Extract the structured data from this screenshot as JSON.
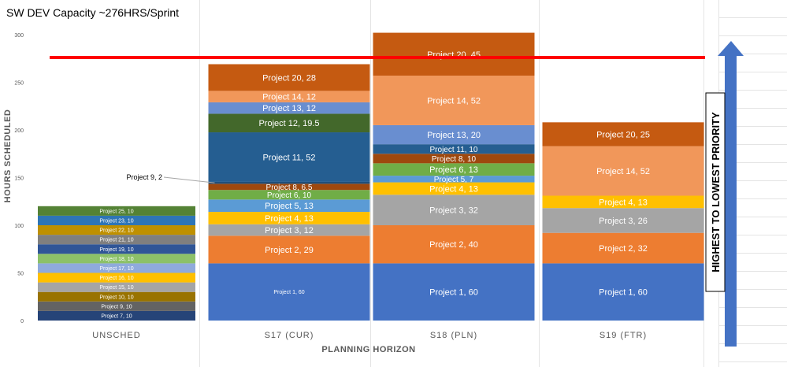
{
  "chart_data": {
    "type": "bar",
    "stacked": true,
    "title": "SW DEV Capacity ~276HRS/Sprint",
    "xlabel": "PLANNING HORIZON",
    "ylabel": "HOURS SCHEDULED",
    "ylim": [
      0,
      300
    ],
    "yticks": [
      "0",
      "50",
      "100",
      "150",
      "200",
      "250",
      "300"
    ],
    "categories": [
      "UNSCHED",
      "S17 (CUR)",
      "S18 (PLN)",
      "S19 (FTR)"
    ],
    "capacity_line": 276,
    "capacity_color": "#ff0000",
    "priority_arrow_label": "HIGHEST TO LOWEST PRIORITY",
    "arrow_color": "#4472c4",
    "external_label": {
      "text": "Project 9, 2",
      "category": "S17 (CUR)",
      "segment": 7
    },
    "stacks": [
      {
        "category": "UNSCHED",
        "segments": [
          {
            "label": "Project 7, 10",
            "value": 10,
            "color": "#264478"
          },
          {
            "label": "Project 9, 10",
            "value": 10,
            "color": "#636363"
          },
          {
            "label": "Project 10, 10",
            "value": 10,
            "color": "#997300"
          },
          {
            "label": "Project 15, 10",
            "value": 10,
            "color": "#a5a5a5"
          },
          {
            "label": "Project 16, 10",
            "value": 10,
            "color": "#ffc000"
          },
          {
            "label": "Project 17, 10",
            "value": 10,
            "color": "#8faadc"
          },
          {
            "label": "Project 18, 10",
            "value": 10,
            "color": "#8cc168"
          },
          {
            "label": "Project 19, 10",
            "value": 10,
            "color": "#2f5597"
          },
          {
            "label": "Project 21, 10",
            "value": 10,
            "color": "#7f7f7f"
          },
          {
            "label": "Project 22, 10",
            "value": 10,
            "color": "#bf9000"
          },
          {
            "label": "Project 23, 10",
            "value": 10,
            "color": "#2e75b6"
          },
          {
            "label": "Project 25, 10",
            "value": 10,
            "color": "#548235"
          }
        ]
      },
      {
        "category": "S17 (CUR)",
        "segments": [
          {
            "label": "Project 1, 60",
            "value": 60,
            "color": "#4472c4"
          },
          {
            "label": "Project 2, 29",
            "value": 29,
            "color": "#ed7d31"
          },
          {
            "label": "Project 3, 12",
            "value": 12,
            "color": "#a5a5a5"
          },
          {
            "label": "Project 4, 13",
            "value": 13,
            "color": "#ffc000"
          },
          {
            "label": "Project 5, 13",
            "value": 13,
            "color": "#5b9bd5"
          },
          {
            "label": "Project 6, 10",
            "value": 10,
            "color": "#70ad47"
          },
          {
            "label": "Project 8, 6.5",
            "value": 6.5,
            "color": "#9e480e"
          },
          {
            "label": "",
            "value": 2,
            "color": "#1f4e79"
          },
          {
            "label": "Project 11, 52",
            "value": 52,
            "color": "#255e91"
          },
          {
            "label": "Project 12, 19.5",
            "value": 19.5,
            "color": "#43682b"
          },
          {
            "label": "Project 13, 12",
            "value": 12,
            "color": "#698ed0"
          },
          {
            "label": "Project 14, 12",
            "value": 12,
            "color": "#f1975a"
          },
          {
            "label": "Project 20, 28",
            "value": 28,
            "color": "#c55a11"
          }
        ]
      },
      {
        "category": "S18 (PLN)",
        "segments": [
          {
            "label": "Project 1, 60",
            "value": 60,
            "color": "#4472c4"
          },
          {
            "label": "Project 2, 40",
            "value": 40,
            "color": "#ed7d31"
          },
          {
            "label": "Project 3, 32",
            "value": 32,
            "color": "#a5a5a5"
          },
          {
            "label": "Project 4, 13",
            "value": 13,
            "color": "#ffc000"
          },
          {
            "label": "Project 5, 7",
            "value": 7,
            "color": "#5b9bd5"
          },
          {
            "label": "Project 6, 13",
            "value": 13,
            "color": "#70ad47"
          },
          {
            "label": "Project 8, 10",
            "value": 10,
            "color": "#9e480e"
          },
          {
            "label": "Project 11, 10",
            "value": 10,
            "color": "#255e91"
          },
          {
            "label": "Project 13, 20",
            "value": 20,
            "color": "#698ed0"
          },
          {
            "label": "Project 14, 52",
            "value": 52,
            "color": "#f1975a"
          },
          {
            "label": "Project 20, 45",
            "value": 45,
            "color": "#c55a11"
          }
        ]
      },
      {
        "category": "S19 (FTR)",
        "segments": [
          {
            "label": "Project 1, 60",
            "value": 60,
            "color": "#4472c4"
          },
          {
            "label": "Project 2, 32",
            "value": 32,
            "color": "#ed7d31"
          },
          {
            "label": "Project 3, 26",
            "value": 26,
            "color": "#a5a5a5"
          },
          {
            "label": "Project 4, 13",
            "value": 13,
            "color": "#ffc000"
          },
          {
            "label": "Project 14, 52",
            "value": 52,
            "color": "#f1975a"
          },
          {
            "label": "Project 20, 25",
            "value": 25,
            "color": "#c55a11"
          }
        ]
      }
    ]
  }
}
